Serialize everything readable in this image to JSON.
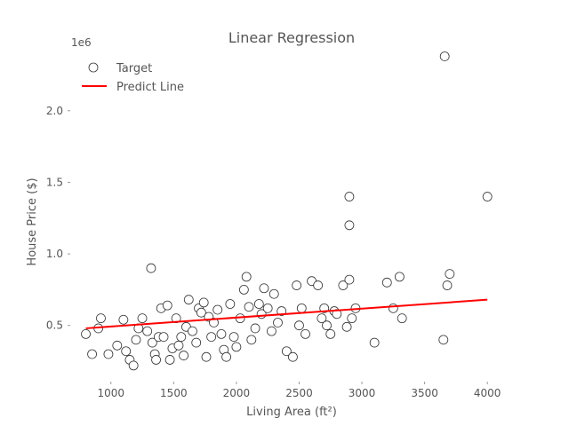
{
  "chart_data": {
    "type": "scatter",
    "title": "Linear Regression",
    "xlabel": "Living Area (ft²)",
    "ylabel": "House Price ($)",
    "y_offset_label": "1e6",
    "xlim": [
      690,
      4190
    ],
    "ylim": [
      0.12,
      2.6
    ],
    "x_ticks": [
      1000,
      1500,
      2000,
      2500,
      3000,
      3500,
      4000
    ],
    "x_tick_labels": [
      "1000",
      "1500",
      "2000",
      "2500",
      "3000",
      "3500",
      "4000"
    ],
    "y_ticks": [
      0.5,
      1.0,
      1.5,
      2.0
    ],
    "y_tick_labels": [
      "0.5",
      "1.0",
      "1.5",
      "2.0"
    ],
    "grid": false,
    "legend": {
      "position": "top-left",
      "entries": [
        "Target",
        "Predict Line"
      ]
    },
    "series": [
      {
        "name": "Target",
        "kind": "scatter",
        "x": [
          800,
          850,
          900,
          920,
          980,
          1050,
          1100,
          1120,
          1150,
          1180,
          1200,
          1220,
          1250,
          1290,
          1320,
          1330,
          1350,
          1360,
          1380,
          1400,
          1420,
          1450,
          1470,
          1490,
          1520,
          1540,
          1560,
          1580,
          1600,
          1620,
          1650,
          1680,
          1700,
          1720,
          1740,
          1760,
          1780,
          1800,
          1820,
          1850,
          1880,
          1900,
          1920,
          1950,
          1980,
          2000,
          2030,
          2060,
          2080,
          2100,
          2120,
          2150,
          2180,
          2200,
          2220,
          2250,
          2280,
          2300,
          2330,
          2360,
          2400,
          2450,
          2480,
          2500,
          2520,
          2550,
          2600,
          2650,
          2680,
          2700,
          2720,
          2750,
          2780,
          2800,
          2850,
          2880,
          2900,
          2900,
          2900,
          2920,
          2950,
          3100,
          3200,
          3250,
          3300,
          3320,
          3650,
          3660,
          3680,
          3700,
          4000
        ],
        "y": [
          0.44,
          0.3,
          0.48,
          0.55,
          0.3,
          0.36,
          0.54,
          0.32,
          0.26,
          0.22,
          0.4,
          0.48,
          0.55,
          0.46,
          0.9,
          0.38,
          0.3,
          0.26,
          0.42,
          0.62,
          0.42,
          0.64,
          0.26,
          0.34,
          0.55,
          0.36,
          0.42,
          0.29,
          0.49,
          0.68,
          0.46,
          0.38,
          0.62,
          0.59,
          0.66,
          0.28,
          0.56,
          0.42,
          0.52,
          0.61,
          0.44,
          0.33,
          0.28,
          0.65,
          0.42,
          0.35,
          0.55,
          0.75,
          0.84,
          0.63,
          0.4,
          0.48,
          0.65,
          0.58,
          0.76,
          0.62,
          0.46,
          0.72,
          0.52,
          0.6,
          0.32,
          0.28,
          0.78,
          0.5,
          0.62,
          0.44,
          0.81,
          0.78,
          0.55,
          0.62,
          0.5,
          0.44,
          0.6,
          0.58,
          0.78,
          0.49,
          1.4,
          1.2,
          0.82,
          0.55,
          0.62,
          0.38,
          0.8,
          0.62,
          0.84,
          0.55,
          0.4,
          2.38,
          0.78,
          0.86,
          1.4
        ]
      },
      {
        "name": "Predict Line",
        "kind": "line",
        "color": "#ff0000",
        "x": [
          800,
          4000
        ],
        "y": [
          0.48,
          0.68
        ]
      }
    ]
  }
}
